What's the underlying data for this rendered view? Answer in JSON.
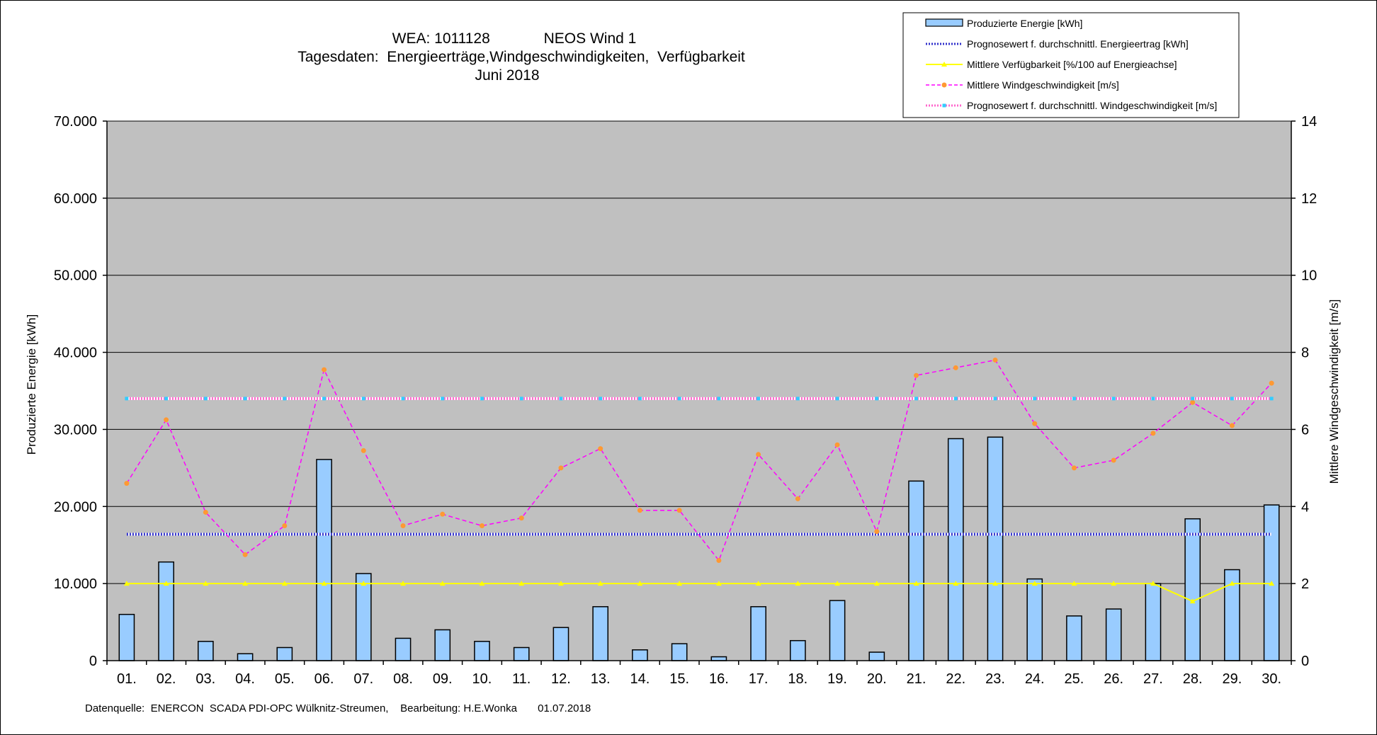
{
  "chart_data": {
    "type": "bar",
    "title_lines": [
      "WEA: 1011128             NEOS Wind 1",
      "Tagesdaten:  Energieerträge,Windgeschwindigkeiten,  Verfügbarkeit",
      "Juni 2018"
    ],
    "ylabel_left": "Produzierte Energie [kWh]",
    "ylabel_right": "Mittlere Windgeschwindigkeit [m/s]",
    "ylim_left": [
      0,
      70000
    ],
    "ylim_right": [
      0,
      14
    ],
    "yticks_left": [
      "0",
      "10.000",
      "20.000",
      "30.000",
      "40.000",
      "50.000",
      "60.000",
      "70.000"
    ],
    "yticks_right": [
      "0",
      "2",
      "4",
      "6",
      "8",
      "10",
      "12",
      "14"
    ],
    "grid": true,
    "legend_position": "top-right",
    "categories": [
      "01.",
      "02.",
      "03.",
      "04.",
      "05.",
      "06.",
      "07.",
      "08.",
      "09.",
      "10.",
      "11.",
      "12.",
      "13.",
      "14.",
      "15.",
      "16.",
      "17.",
      "18.",
      "19.",
      "20.",
      "21.",
      "22.",
      "23.",
      "24.",
      "25.",
      "26.",
      "27.",
      "28.",
      "29.",
      "30."
    ],
    "series": [
      {
        "name": "Produzierte Energie [kWh]",
        "kind": "bar",
        "axis": "left",
        "color": "#99ccff",
        "values": [
          6000,
          12800,
          2500,
          900,
          1700,
          26100,
          11300,
          2900,
          4000,
          2500,
          1700,
          4300,
          7000,
          1400,
          2200,
          500,
          7000,
          2600,
          7800,
          1100,
          23300,
          28800,
          29000,
          10600,
          5800,
          6700,
          10000,
          18400,
          11800,
          20200
        ]
      },
      {
        "name": "Prognosewert f. durchschnittl. Energieertrag  [kWh]",
        "kind": "line",
        "axis": "left",
        "color": "#3333cc",
        "values": [
          16400,
          16400,
          16400,
          16400,
          16400,
          16400,
          16400,
          16400,
          16400,
          16400,
          16400,
          16400,
          16400,
          16400,
          16400,
          16400,
          16400,
          16400,
          16400,
          16400,
          16400,
          16400,
          16400,
          16400,
          16400,
          16400,
          16400,
          16400,
          16400,
          16400
        ]
      },
      {
        "name": "Mittlere Verfügbarkeit [%/100 auf Energieachse]",
        "kind": "line",
        "axis": "left",
        "color": "#ffff00",
        "values": [
          10000,
          10000,
          10000,
          10000,
          10000,
          10000,
          10000,
          10000,
          10000,
          10000,
          10000,
          10000,
          10000,
          10000,
          10000,
          10000,
          10000,
          10000,
          10000,
          10000,
          10000,
          10000,
          10000,
          10000,
          10000,
          10000,
          10000,
          7700,
          10000,
          10000
        ]
      },
      {
        "name": "Mittlere Windgeschwindigkeit [m/s]",
        "kind": "line",
        "axis": "right",
        "color": "#ff00ff",
        "marker_color": "#ff9933",
        "values": [
          4.6,
          6.25,
          3.85,
          2.75,
          3.5,
          7.55,
          5.45,
          3.5,
          3.8,
          3.5,
          3.7,
          5.0,
          5.5,
          3.9,
          3.9,
          2.6,
          5.35,
          4.2,
          5.6,
          3.35,
          7.4,
          7.6,
          7.8,
          6.15,
          5.0,
          5.2,
          5.9,
          6.7,
          6.1,
          7.2
        ]
      },
      {
        "name": "Prognosewert f. durchschnittl. Windgeschwindigkeit [m/s]",
        "kind": "line",
        "axis": "right",
        "color": "#ff66cc",
        "marker_color": "#33ccff",
        "values": [
          6.8,
          6.8,
          6.8,
          6.8,
          6.8,
          6.8,
          6.8,
          6.8,
          6.8,
          6.8,
          6.8,
          6.8,
          6.8,
          6.8,
          6.8,
          6.8,
          6.8,
          6.8,
          6.8,
          6.8,
          6.8,
          6.8,
          6.8,
          6.8,
          6.8,
          6.8,
          6.8,
          6.8,
          6.8,
          6.8
        ]
      }
    ],
    "footer": "Datenquelle:  ENERCON  SCADA PDI-OPC Wülknitz-Streumen,    Bearbeitung: H.E.Wonka       01.07.2018"
  },
  "colors": {
    "plot_background": "#c0c0c0",
    "gridline": "#000000",
    "bar_edge": "#000000"
  }
}
